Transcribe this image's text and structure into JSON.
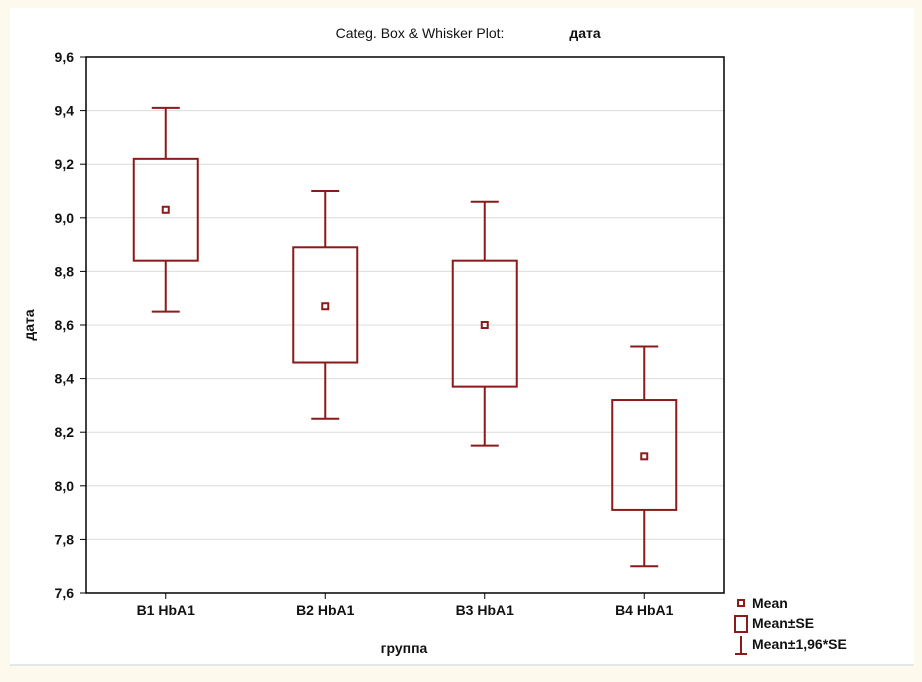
{
  "chart_data": {
    "type": "box",
    "title": "Categ. Box & Whisker Plot:",
    "title_variable": "дата",
    "xlabel": "группа",
    "ylabel": "дата",
    "ylim": [
      7.6,
      9.6
    ],
    "yticks": [
      7.6,
      7.8,
      8.0,
      8.2,
      8.4,
      8.6,
      8.8,
      9.0,
      9.2,
      9.4,
      9.6
    ],
    "ytick_labels": [
      "7,6",
      "7,8",
      "8,0",
      "8,2",
      "8,4",
      "8,6",
      "8,8",
      "9,0",
      "9,2",
      "9,4",
      "9,6"
    ],
    "grid": true,
    "categories": [
      "B1 HbA1",
      "B2 HbA1",
      "B3 HbA1",
      "B4 HbA1"
    ],
    "mean": [
      9.03,
      8.67,
      8.6,
      8.11
    ],
    "se_low": [
      8.84,
      8.46,
      8.37,
      7.91
    ],
    "se_high": [
      9.22,
      8.89,
      8.84,
      8.32
    ],
    "ci_low": [
      8.65,
      8.25,
      8.15,
      7.7
    ],
    "ci_high": [
      9.41,
      9.1,
      9.06,
      8.52
    ],
    "legend": {
      "position": "bottom-right",
      "entries": [
        "Mean",
        "Mean±SE",
        "Mean±1,96*SE"
      ]
    },
    "colors": {
      "series": "#8b1a1a",
      "grid": "#dcdcdc",
      "axis": "#000000"
    }
  }
}
